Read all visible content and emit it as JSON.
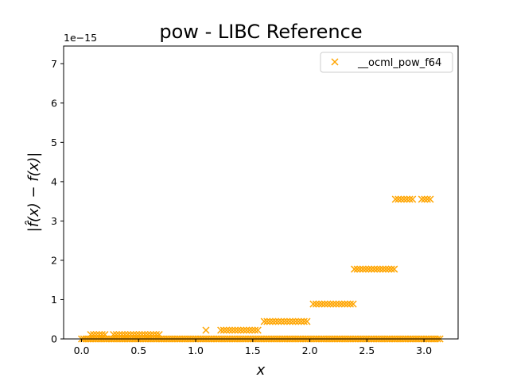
{
  "chart_data": {
    "type": "scatter",
    "title": "pow - LIBC Reference",
    "xlabel": "x",
    "ylabel": "|f̂(x) − f(x)|",
    "y_offset_label": "1e−15",
    "xlim": [
      -0.157,
      3.299
    ],
    "ylim": [
      0,
      7.45
    ],
    "x_ticks": [
      0.0,
      0.5,
      1.0,
      1.5,
      2.0,
      2.5,
      3.0
    ],
    "x_tick_labels": [
      "0.0",
      "0.5",
      "1.0",
      "1.5",
      "2.0",
      "2.5",
      "3.0"
    ],
    "y_ticks": [
      0,
      1,
      2,
      3,
      4,
      5,
      6,
      7
    ],
    "y_tick_labels": [
      "0",
      "1",
      "2",
      "3",
      "4",
      "5",
      "6",
      "7"
    ],
    "legend_position": "top-right",
    "grid": false,
    "series": [
      {
        "name": "__ocml_pow_f64",
        "color": "#ffa500",
        "marker": "x",
        "levels": [
          {
            "y": 0.0,
            "x_ranges": [
              [
                0.0,
                3.14
              ]
            ]
          },
          {
            "y": 0.111,
            "x_ranges": [
              [
                0.08,
                0.22
              ],
              [
                0.28,
                0.68
              ]
            ]
          },
          {
            "y": 0.222,
            "x_ranges": [
              [
                1.09,
                1.09
              ],
              [
                1.22,
                1.55
              ]
            ]
          },
          {
            "y": 0.444,
            "x_ranges": [
              [
                1.6,
                1.98
              ]
            ]
          },
          {
            "y": 0.888,
            "x_ranges": [
              [
                2.03,
                2.38
              ]
            ]
          },
          {
            "y": 1.776,
            "x_ranges": [
              [
                2.39,
                2.74
              ]
            ]
          },
          {
            "y": 3.553,
            "x_ranges": [
              [
                2.75,
                2.92
              ],
              [
                2.98,
                3.07
              ]
            ]
          }
        ]
      }
    ]
  }
}
